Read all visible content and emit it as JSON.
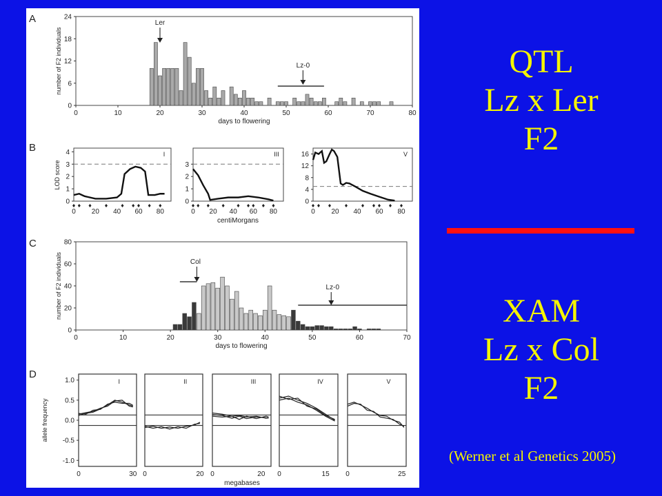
{
  "slide": {
    "qtl_lines": [
      "QTL",
      "Lz x Ler",
      "F2"
    ],
    "xam_lines": [
      "XAM",
      "Lz x Col",
      "F2"
    ],
    "citation": "(Werner et al Genetics 2005)",
    "colors": {
      "background": "#0c12e6",
      "text": "#f4f400",
      "divider": "#ff1010"
    }
  },
  "figure": {
    "panelA": {
      "letter": "A",
      "ylabel": "number of F2 individuals",
      "xlabel": "days to flowering",
      "yticks": [
        0,
        6,
        12,
        18,
        24
      ],
      "xticks": [
        0,
        10,
        20,
        30,
        40,
        50,
        60,
        70,
        80
      ],
      "marker_ler": "Ler",
      "marker_lz": "Lz-0",
      "chart_data": {
        "type": "bar",
        "x": [
          18,
          19,
          20,
          21,
          22,
          23,
          24,
          25,
          26,
          27,
          28,
          29,
          30,
          31,
          32,
          33,
          34,
          35,
          36,
          37,
          38,
          39,
          40,
          41,
          42,
          43,
          44,
          45,
          46,
          47,
          48,
          49,
          50,
          51,
          52,
          53,
          54,
          55,
          56,
          57,
          58,
          59,
          60,
          61,
          62,
          63,
          64,
          65,
          66,
          67,
          68,
          69,
          70,
          71,
          72,
          73,
          74,
          75
        ],
        "values": [
          10,
          17,
          8,
          10,
          10,
          10,
          10,
          4,
          17,
          13,
          6,
          10,
          10,
          4,
          2,
          5,
          2,
          4,
          0,
          5,
          3,
          2,
          4,
          2,
          2,
          1,
          1,
          0,
          2,
          0,
          1,
          1,
          1,
          0,
          2,
          1,
          1,
          3,
          2,
          1,
          1,
          2,
          0,
          0,
          1,
          2,
          1,
          0,
          2,
          0,
          1,
          0,
          1,
          1,
          1,
          0,
          0,
          1
        ],
        "xlim": [
          0,
          80
        ],
        "ylim": [
          0,
          24
        ],
        "ler_arrow_x": 20,
        "lz_arrow_x": 54,
        "lz_range": [
          48,
          59
        ]
      }
    },
    "panelB": {
      "letter": "B",
      "ylabel": "LOD score",
      "xlabel": "centiMorgans",
      "charts": [
        {
          "label": "I",
          "yticks": [
            0,
            1,
            2,
            3,
            4
          ],
          "ymax": 4.3,
          "xticks": [
            0,
            20,
            40,
            60,
            80
          ],
          "xmax": 90,
          "threshold": 3,
          "points": [
            [
              0,
              0.5
            ],
            [
              5,
              0.6
            ],
            [
              10,
              0.4
            ],
            [
              20,
              0.2
            ],
            [
              30,
              0.2
            ],
            [
              40,
              0.3
            ],
            [
              44,
              0.6
            ],
            [
              47,
              2.2
            ],
            [
              52,
              2.6
            ],
            [
              57,
              2.8
            ],
            [
              62,
              2.7
            ],
            [
              66,
              2.4
            ],
            [
              69,
              0.5
            ],
            [
              75,
              0.5
            ],
            [
              80,
              0.6
            ],
            [
              84,
              0.6
            ]
          ]
        },
        {
          "label": "III",
          "yticks": [
            0,
            1,
            2,
            3
          ],
          "ymax": 4.3,
          "xticks": [
            0,
            20,
            40,
            60,
            80
          ],
          "xmax": 90,
          "threshold": 3,
          "points": [
            [
              0,
              2.6
            ],
            [
              5,
              2.1
            ],
            [
              10,
              1.3
            ],
            [
              15,
              0.6
            ],
            [
              17,
              0.1
            ],
            [
              25,
              0.2
            ],
            [
              35,
              0.3
            ],
            [
              45,
              0.3
            ],
            [
              55,
              0.4
            ],
            [
              65,
              0.3
            ],
            [
              75,
              0.15
            ],
            [
              80,
              0.05
            ]
          ]
        },
        {
          "label": "V",
          "yticks": [
            0,
            4,
            8,
            12,
            16
          ],
          "ymax": 18,
          "xticks": [
            0,
            20,
            40,
            60,
            80
          ],
          "xmax": 90,
          "threshold": 5,
          "points": [
            [
              0,
              14
            ],
            [
              2,
              16.5
            ],
            [
              5,
              16
            ],
            [
              8,
              17
            ],
            [
              10,
              13
            ],
            [
              12,
              13.5
            ],
            [
              15,
              16
            ],
            [
              17,
              17.5
            ],
            [
              19,
              17
            ],
            [
              22,
              15
            ],
            [
              25,
              6
            ],
            [
              27,
              5.5
            ],
            [
              30,
              6.2
            ],
            [
              33,
              6
            ],
            [
              38,
              5
            ],
            [
              45,
              3.5
            ],
            [
              52,
              2.5
            ],
            [
              60,
              1.5
            ],
            [
              68,
              0.5
            ],
            [
              74,
              0.2
            ]
          ]
        }
      ]
    },
    "panelC": {
      "letter": "C",
      "ylabel": "number of F2 individuals",
      "xlabel": "days to flowering",
      "yticks": [
        0,
        20,
        40,
        60,
        80
      ],
      "xticks": [
        0,
        10,
        20,
        30,
        40,
        50,
        60,
        70
      ],
      "marker_col": "Col",
      "marker_lz": "Lz-0",
      "chart_data": {
        "type": "bar",
        "x": [
          21,
          22,
          23,
          24,
          25,
          26,
          27,
          28,
          29,
          30,
          31,
          32,
          33,
          34,
          35,
          36,
          37,
          38,
          39,
          40,
          41,
          42,
          43,
          44,
          45,
          46,
          47,
          48,
          49,
          50,
          51,
          52,
          53,
          54,
          55,
          56,
          57,
          58,
          59,
          60,
          61,
          62,
          63,
          64,
          65
        ],
        "values": [
          5,
          5,
          15,
          12,
          25,
          15,
          40,
          42,
          43,
          38,
          48,
          40,
          28,
          35,
          20,
          15,
          18,
          15,
          13,
          18,
          40,
          18,
          14,
          13,
          12,
          18,
          8,
          5,
          3,
          3,
          4,
          4,
          3,
          3,
          1,
          1,
          1,
          1,
          3,
          1,
          0,
          1,
          1,
          1,
          0
        ],
        "dark": [
          1,
          1,
          1,
          1,
          1,
          0,
          0,
          0,
          0,
          0,
          0,
          0,
          0,
          0,
          0,
          0,
          0,
          0,
          0,
          0,
          0,
          0,
          0,
          0,
          0,
          1,
          1,
          1,
          1,
          1,
          1,
          1,
          1,
          1,
          1,
          1,
          1,
          1,
          1,
          1,
          1,
          1,
          1,
          1,
          1
        ],
        "xlim": [
          0,
          70
        ],
        "ylim": [
          0,
          80
        ],
        "col_arrow_x": 25,
        "col_range": [
          22,
          25
        ],
        "lz_arrow_x": 54,
        "lz_range": [
          47,
          70
        ]
      }
    },
    "panelD": {
      "letter": "D",
      "ylabel": "allele frequency",
      "xlabel": "megabases",
      "yticks": [
        "1.0",
        "0.5",
        "0.0",
        "-0.5",
        "-1.0"
      ],
      "thresholds": [
        0.13,
        -0.13
      ],
      "charts": [
        {
          "label": "I",
          "xticks": [
            0,
            30
          ],
          "xmax": 32,
          "curves": [
            [
              [
                0,
                0.12
              ],
              [
                4,
                0.17
              ],
              [
                8,
                0.2
              ],
              [
                12,
                0.28
              ],
              [
                16,
                0.38
              ],
              [
                20,
                0.5
              ],
              [
                24,
                0.45
              ],
              [
                28,
                0.38
              ],
              [
                30,
                0.35
              ]
            ],
            [
              [
                0,
                0.15
              ],
              [
                4,
                0.19
              ],
              [
                8,
                0.22
              ],
              [
                12,
                0.3
              ],
              [
                16,
                0.35
              ],
              [
                20,
                0.48
              ],
              [
                24,
                0.5
              ],
              [
                28,
                0.35
              ],
              [
                30,
                0.33
              ]
            ],
            [
              [
                0,
                0.17
              ],
              [
                4,
                0.15
              ],
              [
                8,
                0.25
              ],
              [
                12,
                0.27
              ],
              [
                16,
                0.4
              ],
              [
                20,
                0.45
              ],
              [
                24,
                0.42
              ],
              [
                28,
                0.42
              ],
              [
                30,
                0.37
              ]
            ]
          ]
        },
        {
          "label": "II",
          "xticks": [
            0,
            20
          ],
          "xmax": 21,
          "curves": [
            [
              [
                0,
                -0.18
              ],
              [
                3,
                -0.15
              ],
              [
                6,
                -0.2
              ],
              [
                9,
                -0.17
              ],
              [
                12,
                -0.2
              ],
              [
                15,
                -0.15
              ],
              [
                18,
                -0.12
              ],
              [
                20,
                -0.05
              ]
            ],
            [
              [
                0,
                -0.15
              ],
              [
                3,
                -0.2
              ],
              [
                6,
                -0.16
              ],
              [
                9,
                -0.22
              ],
              [
                12,
                -0.16
              ],
              [
                15,
                -0.2
              ],
              [
                18,
                -0.1
              ],
              [
                20,
                -0.08
              ]
            ]
          ]
        },
        {
          "label": "III",
          "xticks": [
            0,
            20
          ],
          "xmax": 24,
          "curves": [
            [
              [
                0,
                0.14
              ],
              [
                4,
                0.12
              ],
              [
                8,
                0.05
              ],
              [
                11,
                0.1
              ],
              [
                14,
                0.04
              ],
              [
                18,
                0.08
              ],
              [
                22,
                0.06
              ],
              [
                23,
                0.05
              ]
            ],
            [
              [
                0,
                0.18
              ],
              [
                4,
                0.15
              ],
              [
                8,
                0.1
              ],
              [
                11,
                0.12
              ],
              [
                14,
                0.08
              ],
              [
                18,
                0.1
              ],
              [
                22,
                0.05
              ],
              [
                23,
                0.07
              ]
            ],
            [
              [
                0,
                0.1
              ],
              [
                4,
                0.08
              ],
              [
                8,
                0.1
              ],
              [
                11,
                0.02
              ],
              [
                14,
                0.1
              ],
              [
                18,
                0.04
              ],
              [
                22,
                0.1
              ],
              [
                23,
                0.08
              ]
            ]
          ]
        },
        {
          "label": "IV",
          "xticks": [
            0,
            15
          ],
          "xmax": 19,
          "curves": [
            [
              [
                0,
                0.55
              ],
              [
                3,
                0.6
              ],
              [
                6,
                0.5
              ],
              [
                9,
                0.42
              ],
              [
                12,
                0.3
              ],
              [
                15,
                0.15
              ],
              [
                18,
                0.0
              ]
            ],
            [
              [
                0,
                0.5
              ],
              [
                3,
                0.55
              ],
              [
                6,
                0.45
              ],
              [
                9,
                0.38
              ],
              [
                12,
                0.25
              ],
              [
                15,
                0.1
              ],
              [
                18,
                -0.02
              ]
            ],
            [
              [
                0,
                0.6
              ],
              [
                3,
                0.52
              ],
              [
                6,
                0.55
              ],
              [
                9,
                0.35
              ],
              [
                12,
                0.28
              ],
              [
                15,
                0.12
              ],
              [
                18,
                0.02
              ]
            ]
          ]
        },
        {
          "label": "V",
          "xticks": [
            0,
            25
          ],
          "xmax": 27,
          "curves": [
            [
              [
                0,
                0.4
              ],
              [
                3,
                0.45
              ],
              [
                6,
                0.38
              ],
              [
                9,
                0.3
              ],
              [
                12,
                0.2
              ],
              [
                15,
                0.12
              ],
              [
                18,
                0.1
              ],
              [
                21,
                0.0
              ],
              [
                24,
                -0.05
              ],
              [
                26,
                -0.18
              ]
            ],
            [
              [
                0,
                0.35
              ],
              [
                3,
                0.42
              ],
              [
                6,
                0.4
              ],
              [
                9,
                0.25
              ],
              [
                12,
                0.22
              ],
              [
                15,
                0.08
              ],
              [
                18,
                0.05
              ],
              [
                21,
                0.02
              ],
              [
                24,
                -0.1
              ],
              [
                26,
                -0.15
              ]
            ]
          ]
        }
      ]
    }
  }
}
